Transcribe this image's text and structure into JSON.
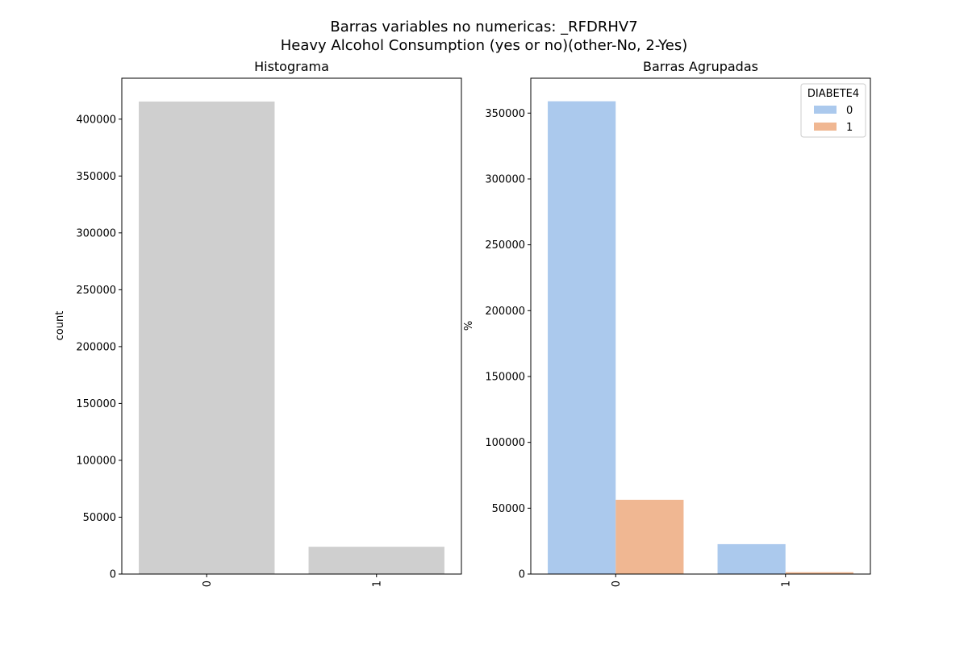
{
  "figure": {
    "title_line1": "Barras variables no numericas: _RFDRHV7",
    "title_line2": "Heavy Alcohol Consumption (yes or no)(other-No, 2-Yes)"
  },
  "chart_data": [
    {
      "type": "bar",
      "title": "Histograma",
      "xlabel": "",
      "ylabel": "count",
      "categories": [
        "0",
        "1"
      ],
      "values": [
        415500,
        24000
      ],
      "ylim": [
        0,
        436000
      ],
      "yticks": [
        0,
        50000,
        100000,
        150000,
        200000,
        250000,
        300000,
        350000,
        400000
      ],
      "colors": [
        "#cfcfcf"
      ],
      "grid": false
    },
    {
      "type": "bar",
      "title": "Barras Agrupadas",
      "xlabel": "",
      "ylabel": "%",
      "categories": [
        "0",
        "1"
      ],
      "legend": {
        "title": "DIABETE4",
        "placement": "upper right"
      },
      "series": [
        {
          "name": "0",
          "values": [
            359000,
            22700
          ],
          "color": "#abc9ed"
        },
        {
          "name": "1",
          "values": [
            56400,
            1400
          ],
          "color": "#f0b792"
        }
      ],
      "ylim": [
        0,
        376500
      ],
      "yticks": [
        0,
        50000,
        100000,
        150000,
        200000,
        250000,
        300000,
        350000
      ],
      "grid": false
    }
  ]
}
